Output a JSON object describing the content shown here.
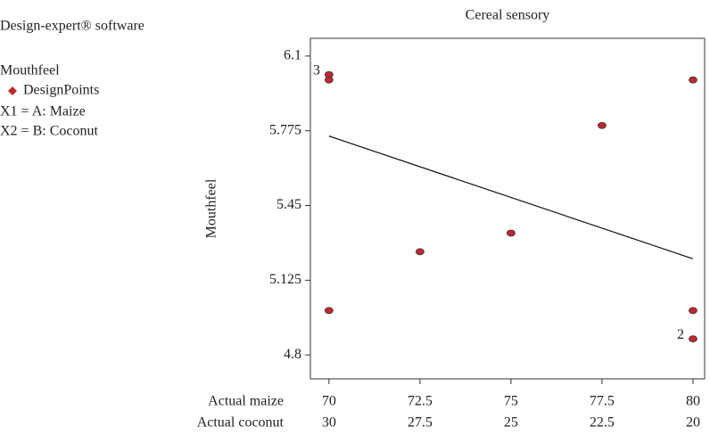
{
  "chart_data": {
    "type": "scatter",
    "title": "Cereal sensory",
    "ylabel": "Mouthfeel",
    "x_label": "Actual maize",
    "x2_label": "Actual coconut",
    "info": [
      "Design-expert® software",
      "Mouthfeel",
      "X1 = A: Maize",
      "X2 = B: Coconut"
    ],
    "series": [
      {
        "name": "DesignPoints",
        "color": "#c0282d",
        "x": [
          70,
          70,
          72.5,
          75,
          77.5,
          80,
          70,
          80,
          80
        ],
        "values": [
          6.019,
          5.996,
          5.249,
          5.33,
          5.798,
          5.996,
          4.993,
          4.993,
          4.87
        ]
      }
    ],
    "fit_line": {
      "x": [
        70,
        80
      ],
      "values": [
        5.752,
        5.218
      ]
    },
    "annotations": [
      {
        "text": "3",
        "x": 70,
        "y": 6.019
      },
      {
        "text": "2",
        "x": 80,
        "y": 4.87
      }
    ],
    "xlim": [
      69.49,
      80.32
    ],
    "ylim": [
      4.696,
      6.177
    ],
    "xticks": [
      70,
      72.5,
      75,
      77.5,
      80
    ],
    "x2ticks": [
      30,
      27.5,
      25,
      22.5,
      20
    ],
    "yticks": [
      4.8,
      5.125,
      5.45,
      5.775,
      6.1
    ]
  }
}
